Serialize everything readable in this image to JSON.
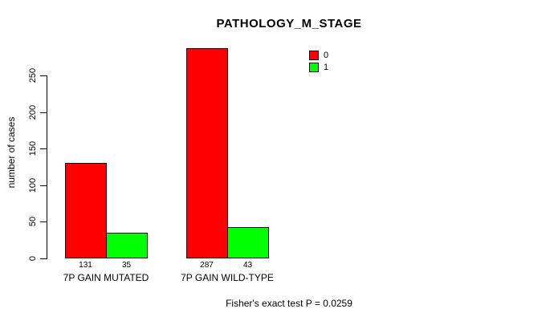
{
  "chart_data": {
    "type": "bar",
    "title": "PATHOLOGY_M_STAGE",
    "ylabel": "number of cases",
    "xlabel": "",
    "categories": [
      "7P GAIN MUTATED",
      "7P GAIN WILD-TYPE"
    ],
    "series": [
      {
        "name": "0",
        "color": "#FF0000",
        "values": [
          131,
          287
        ]
      },
      {
        "name": "1",
        "color": "#00FF00",
        "values": [
          35,
          43
        ]
      }
    ],
    "value_labels": [
      [
        131,
        35
      ],
      [
        287,
        43
      ]
    ],
    "ylim": [
      0,
      290
    ],
    "yticks": [
      0,
      50,
      100,
      150,
      200,
      250
    ],
    "grid": false,
    "legend_position": "top-right",
    "annotation": "Fisher's exact test P = 0.0259"
  }
}
